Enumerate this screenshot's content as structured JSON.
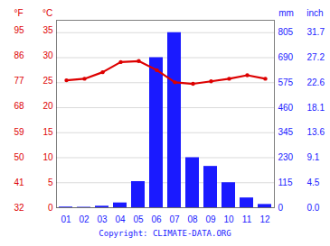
{
  "chart_data": {
    "type": "bar",
    "categories": [
      "01",
      "02",
      "03",
      "04",
      "05",
      "06",
      "07",
      "08",
      "09",
      "10",
      "11",
      "12"
    ],
    "series": [
      {
        "type": "bar",
        "color": "#1a1aff",
        "axis": "y2",
        "values": [
          3,
          2,
          7,
          22,
          120,
          690,
          805,
          230,
          190,
          115,
          45,
          15
        ]
      },
      {
        "type": "line",
        "color": "#dd0000",
        "marker": "circle",
        "values": [
          25.2,
          25.5,
          26.8,
          28.8,
          29.0,
          27.2,
          24.8,
          24.5,
          25.0,
          25.5,
          26.2,
          25.5
        ]
      }
    ],
    "ylabel": "°C",
    "ylim": [
      0,
      37.07
    ],
    "yticks": [
      0,
      5,
      10,
      15,
      20,
      25,
      30,
      35
    ],
    "y_alt": {
      "label": "°F",
      "ticks": [
        {
          "value": 0,
          "label": "32"
        },
        {
          "value": 5,
          "label": "41"
        },
        {
          "value": 10,
          "label": "50"
        },
        {
          "value": 15,
          "label": "59"
        },
        {
          "value": 20,
          "label": "68"
        },
        {
          "value": 25,
          "label": "77"
        },
        {
          "value": 30,
          "label": "86"
        },
        {
          "value": 35,
          "label": "95"
        }
      ]
    },
    "y2label": "mm",
    "y2lim": [
      0,
      862
    ],
    "y2ticks": [
      0,
      115,
      230,
      345,
      460,
      575,
      690,
      805
    ],
    "y2_alt": {
      "label": "inch",
      "ticks": [
        {
          "value": 0,
          "label": "0.0"
        },
        {
          "value": 115,
          "label": "4.5"
        },
        {
          "value": 230,
          "label": "9.1"
        },
        {
          "value": 345,
          "label": "13.6"
        },
        {
          "value": 460,
          "label": "18.1"
        },
        {
          "value": 575,
          "label": "22.6"
        },
        {
          "value": 690,
          "label": "27.2"
        },
        {
          "value": 805,
          "label": "31.7"
        }
      ]
    },
    "grid": true,
    "caption": "Copyright: CLIMATE-DATA.ORG"
  }
}
